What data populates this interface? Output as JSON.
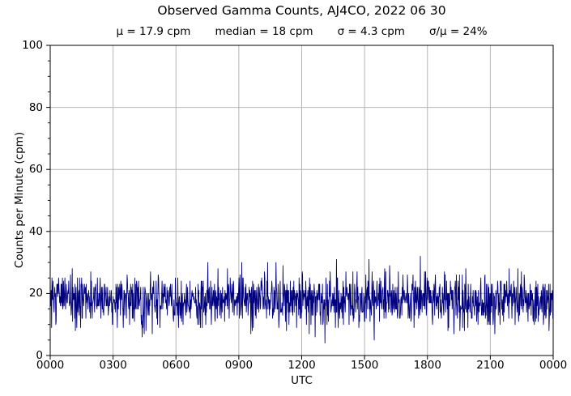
{
  "chart_data": {
    "type": "line",
    "title": "Observed Gamma Counts, AJ4CO, 2022 06 30",
    "stats": [
      "μ = 17.9 cpm",
      "median = 18 cpm",
      "σ = 4.3 cpm",
      "σ/μ = 24%"
    ],
    "stats_values": {
      "mean_cpm": 17.9,
      "median_cpm": 18,
      "sigma_cpm": 4.3,
      "sigma_over_mu_pct": 24
    },
    "xlabel": "UTC",
    "ylabel": "Counts per Minute (cpm)",
    "x_tick_labels": [
      "0000",
      "0300",
      "0600",
      "0900",
      "1200",
      "1500",
      "1800",
      "2100",
      "0000"
    ],
    "x_tick_interval_hours": 3,
    "x_range_minutes": [
      0,
      1440
    ],
    "n_points": 1440,
    "y_ticks": [
      0,
      20,
      40,
      60,
      80,
      100
    ],
    "y_minor_step": 5,
    "ylim": [
      0,
      100
    ],
    "observed_envelope_cpm": {
      "min": 4,
      "max": 34
    },
    "grid": true,
    "legend": "none",
    "line_color": "#000080",
    "grid_color": "#b4b4b4",
    "axis_color": "#000000",
    "background_color": "#ffffff"
  }
}
